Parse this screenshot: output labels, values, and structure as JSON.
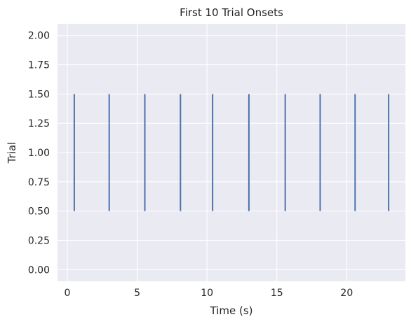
{
  "chart_data": {
    "type": "eventplot",
    "title": "First 10 Trial Onsets",
    "xlabel": "Time (s)",
    "ylabel": "Trial",
    "xlim": [
      -0.7,
      24.2
    ],
    "ylim": [
      -0.1,
      2.1
    ],
    "xticks": [
      0,
      5,
      10,
      15,
      20
    ],
    "xtick_labels": [
      "0",
      "5",
      "10",
      "15",
      "20"
    ],
    "yticks": [
      0.0,
      0.25,
      0.5,
      0.75,
      1.0,
      1.25,
      1.5,
      1.75,
      2.0
    ],
    "ytick_labels": [
      "0.00",
      "0.25",
      "0.50",
      "0.75",
      "1.00",
      "1.25",
      "1.50",
      "1.75",
      "2.00"
    ],
    "grid": true,
    "series": [
      {
        "onsets": [
          0.5,
          3.0,
          5.55,
          8.1,
          10.4,
          13.0,
          15.6,
          18.1,
          20.6,
          23.0
        ],
        "line_from": 0.5,
        "line_to": 1.5
      }
    ],
    "colors": {
      "background": "#eaeaf2",
      "grid": "#ffffff",
      "event": "#4c72b0",
      "text": "#262626"
    }
  }
}
